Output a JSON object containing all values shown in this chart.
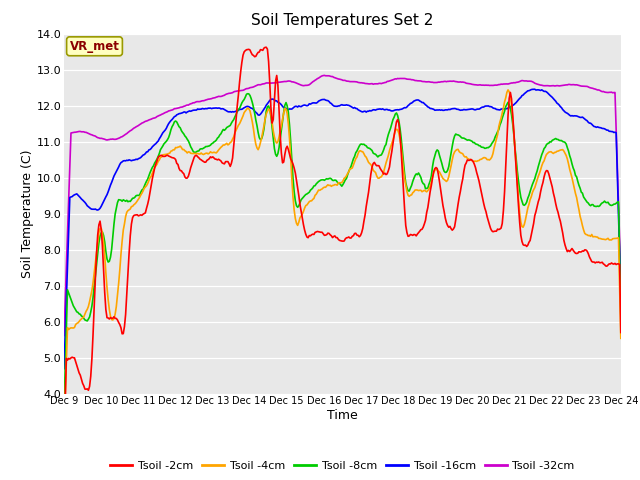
{
  "title": "Soil Temperatures Set 2",
  "xlabel": "Time",
  "ylabel": "Soil Temperature (C)",
  "ylim": [
    4.0,
    14.0
  ],
  "yticks": [
    4.0,
    5.0,
    6.0,
    7.0,
    8.0,
    9.0,
    10.0,
    11.0,
    12.0,
    13.0,
    14.0
  ],
  "xtick_labels": [
    "Dec 9",
    "Dec 10",
    "Dec 11",
    "Dec 12",
    "Dec 13",
    "Dec 14",
    "Dec 15",
    "Dec 16",
    "Dec 17",
    "Dec 18",
    "Dec 19",
    "Dec 20",
    "Dec 21",
    "Dec 22",
    "Dec 23",
    "Dec 24"
  ],
  "annotation_text": "VR_met",
  "annotation_color": "#8B0000",
  "annotation_bg": "#FFFFC0",
  "annotation_edge": "#999900",
  "bg_color": "#E8E8E8",
  "line_colors": {
    "2cm": "#FF0000",
    "4cm": "#FFA500",
    "8cm": "#00CC00",
    "16cm": "#0000FF",
    "32cm": "#CC00CC"
  },
  "legend_labels": [
    "Tsoil -2cm",
    "Tsoil -4cm",
    "Tsoil -8cm",
    "Tsoil -16cm",
    "Tsoil -32cm"
  ],
  "figsize": [
    6.4,
    4.8
  ],
  "dpi": 100
}
